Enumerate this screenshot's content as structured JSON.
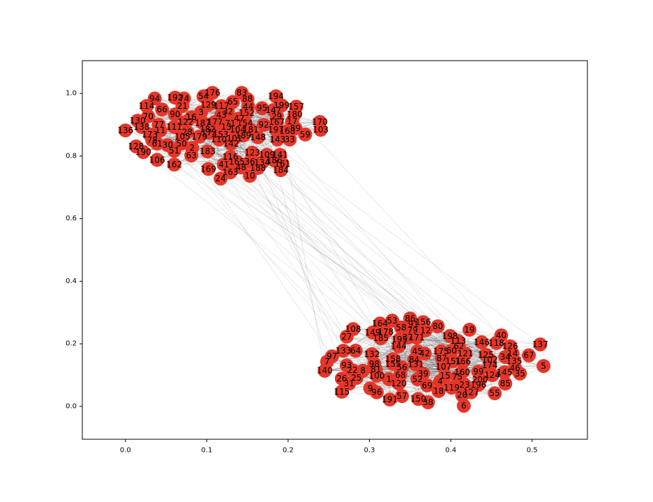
{
  "chart_data": {
    "type": "network",
    "node_color": "#e4372a",
    "xlim": [
      -0.053,
      0.568
    ],
    "ylim": [
      -0.105,
      1.105
    ],
    "xticks": [
      {
        "value": 0,
        "label": "0.0"
      },
      0.1,
      0.2,
      0.3,
      0.4,
      0.5
    ],
    "yticks": [
      {
        "value": 0,
        "label": "0.0"
      },
      0.2,
      0.4,
      0.6,
      0.8,
      {
        "value": 1,
        "label": "1.0"
      }
    ],
    "nodes": [
      {
        "label": "176",
        "x": 0.107,
        "y": 1.002
      },
      {
        "label": "83",
        "x": 0.143,
        "y": 1.002
      },
      {
        "label": "54",
        "x": 0.096,
        "y": 0.991
      },
      {
        "label": "194",
        "x": 0.185,
        "y": 0.991
      },
      {
        "label": "94",
        "x": 0.036,
        "y": 0.984
      },
      {
        "label": "192",
        "x": 0.061,
        "y": 0.987
      },
      {
        "label": "74",
        "x": 0.072,
        "y": 0.984
      },
      {
        "label": "88",
        "x": 0.15,
        "y": 0.982
      },
      {
        "label": "65",
        "x": 0.132,
        "y": 0.973
      },
      {
        "label": "129",
        "x": 0.102,
        "y": 0.964
      },
      {
        "label": "117",
        "x": 0.118,
        "y": 0.96
      },
      {
        "label": "44",
        "x": 0.151,
        "y": 0.958
      },
      {
        "label": "199",
        "x": 0.192,
        "y": 0.962
      },
      {
        "label": "157",
        "x": 0.21,
        "y": 0.958
      },
      {
        "label": "114",
        "x": 0.026,
        "y": 0.96
      },
      {
        "label": "66",
        "x": 0.045,
        "y": 0.949
      },
      {
        "label": "21",
        "x": 0.07,
        "y": 0.96
      },
      {
        "label": "95",
        "x": 0.168,
        "y": 0.953
      },
      {
        "label": "147",
        "x": 0.182,
        "y": 0.947
      },
      {
        "label": "3",
        "x": 0.093,
        "y": 0.94
      },
      {
        "label": "32",
        "x": 0.126,
        "y": 0.942
      },
      {
        "label": "152",
        "x": 0.149,
        "y": 0.938
      },
      {
        "label": "90",
        "x": 0.061,
        "y": 0.933
      },
      {
        "label": "70",
        "x": 0.028,
        "y": 0.927
      },
      {
        "label": "16",
        "x": 0.081,
        "y": 0.924
      },
      {
        "label": "43",
        "x": 0.118,
        "y": 0.931
      },
      {
        "label": "47",
        "x": 0.14,
        "y": 0.92
      },
      {
        "label": "29",
        "x": 0.186,
        "y": 0.927
      },
      {
        "label": "180",
        "x": 0.208,
        "y": 0.933
      },
      {
        "label": "130",
        "x": 0.015,
        "y": 0.913
      },
      {
        "label": "122",
        "x": 0.074,
        "y": 0.909
      },
      {
        "label": "187",
        "x": 0.095,
        "y": 0.906
      },
      {
        "label": "177",
        "x": 0.11,
        "y": 0.909
      },
      {
        "label": "71",
        "x": 0.129,
        "y": 0.904
      },
      {
        "label": "154",
        "x": 0.147,
        "y": 0.906
      },
      {
        "label": "92",
        "x": 0.17,
        "y": 0.9
      },
      {
        "label": "167",
        "x": 0.186,
        "y": 0.909
      },
      {
        "label": "17",
        "x": 0.205,
        "y": 0.911
      },
      {
        "label": "170",
        "x": 0.239,
        "y": 0.909
      },
      {
        "label": "77",
        "x": 0.041,
        "y": 0.9
      },
      {
        "label": "138",
        "x": 0.02,
        "y": 0.893
      },
      {
        "label": "111",
        "x": 0.06,
        "y": 0.893
      },
      {
        "label": "13",
        "x": 0.124,
        "y": 0.893
      },
      {
        "label": "104",
        "x": 0.138,
        "y": 0.884
      },
      {
        "label": "181",
        "x": 0.154,
        "y": 0.884
      },
      {
        "label": "197",
        "x": 0.185,
        "y": 0.884
      },
      {
        "label": "89",
        "x": 0.209,
        "y": 0.889
      },
      {
        "label": "103",
        "x": 0.24,
        "y": 0.884
      },
      {
        "label": "136",
        "x": 0.0,
        "y": 0.882
      },
      {
        "label": "11",
        "x": 0.043,
        "y": 0.882
      },
      {
        "label": "28",
        "x": 0.076,
        "y": 0.877
      },
      {
        "label": "182",
        "x": 0.101,
        "y": 0.886
      },
      {
        "label": "172",
        "x": 0.103,
        "y": 0.875
      },
      {
        "label": "168",
        "x": 0.199,
        "y": 0.88
      },
      {
        "label": "173",
        "x": 0.03,
        "y": 0.869
      },
      {
        "label": "105",
        "x": 0.07,
        "y": 0.862
      },
      {
        "label": "179",
        "x": 0.091,
        "y": 0.862
      },
      {
        "label": "153",
        "x": 0.117,
        "y": 0.869
      },
      {
        "label": "189",
        "x": 0.145,
        "y": 0.866
      },
      {
        "label": "148",
        "x": 0.163,
        "y": 0.86
      },
      {
        "label": "143",
        "x": 0.187,
        "y": 0.853
      },
      {
        "label": "33",
        "x": 0.202,
        "y": 0.853
      },
      {
        "label": "59",
        "x": 0.221,
        "y": 0.869
      },
      {
        "label": "78",
        "x": 0.033,
        "y": 0.851
      },
      {
        "label": "110",
        "x": 0.115,
        "y": 0.853
      },
      {
        "label": "101",
        "x": 0.134,
        "y": 0.857
      },
      {
        "label": "142",
        "x": 0.13,
        "y": 0.84
      },
      {
        "label": "61",
        "x": 0.039,
        "y": 0.84
      },
      {
        "label": "30",
        "x": 0.052,
        "y": 0.835
      },
      {
        "label": "50",
        "x": 0.069,
        "y": 0.84
      },
      {
        "label": "128",
        "x": 0.013,
        "y": 0.831
      },
      {
        "label": "2",
        "x": 0.082,
        "y": 0.826
      },
      {
        "label": "190",
        "x": 0.022,
        "y": 0.813
      },
      {
        "label": "51",
        "x": 0.06,
        "y": 0.817
      },
      {
        "label": "183",
        "x": 0.101,
        "y": 0.815
      },
      {
        "label": "123",
        "x": 0.156,
        "y": 0.811
      },
      {
        "label": "109",
        "x": 0.174,
        "y": 0.804
      },
      {
        "label": "141",
        "x": 0.19,
        "y": 0.804
      },
      {
        "label": "63",
        "x": 0.081,
        "y": 0.802
      },
      {
        "label": "106",
        "x": 0.039,
        "y": 0.788
      },
      {
        "label": "116",
        "x": 0.129,
        "y": 0.797
      },
      {
        "label": "165",
        "x": 0.137,
        "y": 0.782
      },
      {
        "label": "36",
        "x": 0.153,
        "y": 0.782
      },
      {
        "label": "134",
        "x": 0.168,
        "y": 0.78
      },
      {
        "label": "186",
        "x": 0.183,
        "y": 0.786
      },
      {
        "label": "161",
        "x": 0.193,
        "y": 0.775
      },
      {
        "label": "162",
        "x": 0.06,
        "y": 0.773
      },
      {
        "label": "41",
        "x": 0.121,
        "y": 0.773
      },
      {
        "label": "48",
        "x": 0.142,
        "y": 0.764
      },
      {
        "label": "188",
        "x": 0.163,
        "y": 0.762
      },
      {
        "label": "169",
        "x": 0.102,
        "y": 0.759
      },
      {
        "label": "184",
        "x": 0.191,
        "y": 0.755
      },
      {
        "label": "163",
        "x": 0.129,
        "y": 0.748
      },
      {
        "label": "10",
        "x": 0.153,
        "y": 0.737
      },
      {
        "label": "24",
        "x": 0.117,
        "y": 0.728
      },
      {
        "label": "86",
        "x": 0.35,
        "y": 0.281
      },
      {
        "label": "53",
        "x": 0.328,
        "y": 0.274
      },
      {
        "label": "156",
        "x": 0.366,
        "y": 0.269
      },
      {
        "label": "91",
        "x": 0.354,
        "y": 0.263
      },
      {
        "label": "164",
        "x": 0.313,
        "y": 0.265
      },
      {
        "label": "80",
        "x": 0.384,
        "y": 0.256
      },
      {
        "label": "58",
        "x": 0.339,
        "y": 0.252
      },
      {
        "label": "79",
        "x": 0.353,
        "y": 0.243
      },
      {
        "label": "12",
        "x": 0.369,
        "y": 0.243
      },
      {
        "label": "108",
        "x": 0.28,
        "y": 0.247
      },
      {
        "label": "19",
        "x": 0.423,
        "y": 0.245
      },
      {
        "label": "40",
        "x": 0.462,
        "y": 0.227
      },
      {
        "label": "178",
        "x": 0.32,
        "y": 0.238
      },
      {
        "label": "149",
        "x": 0.304,
        "y": 0.236
      },
      {
        "label": "27",
        "x": 0.272,
        "y": 0.223
      },
      {
        "label": "185",
        "x": 0.314,
        "y": 0.218
      },
      {
        "label": "195",
        "x": 0.337,
        "y": 0.214
      },
      {
        "label": "37",
        "x": 0.347,
        "y": 0.22
      },
      {
        "label": "171",
        "x": 0.358,
        "y": 0.22
      },
      {
        "label": "198",
        "x": 0.399,
        "y": 0.225
      },
      {
        "label": "113",
        "x": 0.409,
        "y": 0.209
      },
      {
        "label": "146",
        "x": 0.438,
        "y": 0.205
      },
      {
        "label": "118",
        "x": 0.456,
        "y": 0.203
      },
      {
        "label": "126",
        "x": 0.473,
        "y": 0.192
      },
      {
        "label": "137",
        "x": 0.51,
        "y": 0.198
      },
      {
        "label": "62",
        "x": 0.41,
        "y": 0.192
      },
      {
        "label": "144",
        "x": 0.336,
        "y": 0.192
      },
      {
        "label": "45",
        "x": 0.359,
        "y": 0.176
      },
      {
        "label": "42",
        "x": 0.368,
        "y": 0.169
      },
      {
        "label": "175",
        "x": 0.388,
        "y": 0.176
      },
      {
        "label": "60",
        "x": 0.401,
        "y": 0.178
      },
      {
        "label": "121",
        "x": 0.418,
        "y": 0.169
      },
      {
        "label": "34",
        "x": 0.467,
        "y": 0.158
      },
      {
        "label": "14",
        "x": 0.476,
        "y": 0.169
      },
      {
        "label": "125",
        "x": 0.443,
        "y": 0.165
      },
      {
        "label": "67",
        "x": 0.496,
        "y": 0.163
      },
      {
        "label": "133",
        "x": 0.268,
        "y": 0.178
      },
      {
        "label": "64",
        "x": 0.283,
        "y": 0.178
      },
      {
        "label": "132",
        "x": 0.303,
        "y": 0.167
      },
      {
        "label": "97",
        "x": 0.254,
        "y": 0.16
      },
      {
        "label": "158",
        "x": 0.329,
        "y": 0.151
      },
      {
        "label": "84",
        "x": 0.355,
        "y": 0.149
      },
      {
        "label": "87",
        "x": 0.389,
        "y": 0.154
      },
      {
        "label": "151",
        "x": 0.403,
        "y": 0.145
      },
      {
        "label": "166",
        "x": 0.415,
        "y": 0.143
      },
      {
        "label": "102",
        "x": 0.448,
        "y": 0.149
      },
      {
        "label": "135",
        "x": 0.478,
        "y": 0.145
      },
      {
        "label": "5",
        "x": 0.514,
        "y": 0.129
      },
      {
        "label": "7",
        "x": 0.248,
        "y": 0.143
      },
      {
        "label": "93",
        "x": 0.272,
        "y": 0.131
      },
      {
        "label": "98",
        "x": 0.306,
        "y": 0.136
      },
      {
        "label": "155",
        "x": 0.329,
        "y": 0.136
      },
      {
        "label": "131",
        "x": 0.357,
        "y": 0.134
      },
      {
        "label": "107",
        "x": 0.391,
        "y": 0.127
      },
      {
        "label": "174",
        "x": 0.448,
        "y": 0.131
      },
      {
        "label": "46",
        "x": 0.479,
        "y": 0.122
      },
      {
        "label": "56",
        "x": 0.34,
        "y": 0.125
      },
      {
        "label": "140",
        "x": 0.245,
        "y": 0.114
      },
      {
        "label": "22",
        "x": 0.279,
        "y": 0.116
      },
      {
        "label": "8",
        "x": 0.292,
        "y": 0.114
      },
      {
        "label": "81",
        "x": 0.308,
        "y": 0.118
      },
      {
        "label": "160",
        "x": 0.414,
        "y": 0.109
      },
      {
        "label": "99",
        "x": 0.434,
        "y": 0.111
      },
      {
        "label": "124",
        "x": 0.451,
        "y": 0.1
      },
      {
        "label": "145",
        "x": 0.466,
        "y": 0.109
      },
      {
        "label": "35",
        "x": 0.485,
        "y": 0.105
      },
      {
        "label": "39",
        "x": 0.366,
        "y": 0.105
      },
      {
        "label": "68",
        "x": 0.338,
        "y": 0.1
      },
      {
        "label": "15",
        "x": 0.393,
        "y": 0.098
      },
      {
        "label": "75",
        "x": 0.408,
        "y": 0.094
      },
      {
        "label": "100",
        "x": 0.309,
        "y": 0.098
      },
      {
        "label": "26",
        "x": 0.266,
        "y": 0.089
      },
      {
        "label": "25",
        "x": 0.284,
        "y": 0.091
      },
      {
        "label": "52",
        "x": 0.359,
        "y": 0.087
      },
      {
        "label": "200",
        "x": 0.436,
        "y": 0.085
      },
      {
        "label": "1",
        "x": 0.324,
        "y": 0.087
      },
      {
        "label": "4",
        "x": 0.387,
        "y": 0.08
      },
      {
        "label": "31",
        "x": 0.275,
        "y": 0.073
      },
      {
        "label": "120",
        "x": 0.336,
        "y": 0.073
      },
      {
        "label": "69",
        "x": 0.371,
        "y": 0.067
      },
      {
        "label": "119",
        "x": 0.401,
        "y": 0.06
      },
      {
        "label": "23",
        "x": 0.417,
        "y": 0.069
      },
      {
        "label": "196",
        "x": 0.434,
        "y": 0.069
      },
      {
        "label": "85",
        "x": 0.467,
        "y": 0.073
      },
      {
        "label": "9",
        "x": 0.301,
        "y": 0.058
      },
      {
        "label": "96",
        "x": 0.309,
        "y": 0.045
      },
      {
        "label": "18",
        "x": 0.385,
        "y": 0.049
      },
      {
        "label": "127",
        "x": 0.425,
        "y": 0.045
      },
      {
        "label": "20",
        "x": 0.414,
        "y": 0.036
      },
      {
        "label": "115",
        "x": 0.266,
        "y": 0.047
      },
      {
        "label": "55",
        "x": 0.454,
        "y": 0.042
      },
      {
        "label": "57",
        "x": 0.34,
        "y": 0.033
      },
      {
        "label": "191",
        "x": 0.325,
        "y": 0.022
      },
      {
        "label": "150",
        "x": 0.36,
        "y": 0.024
      },
      {
        "label": "38",
        "x": 0.372,
        "y": 0.013
      },
      {
        "label": "6",
        "x": 0.416,
        "y": 0.002
      }
    ]
  }
}
